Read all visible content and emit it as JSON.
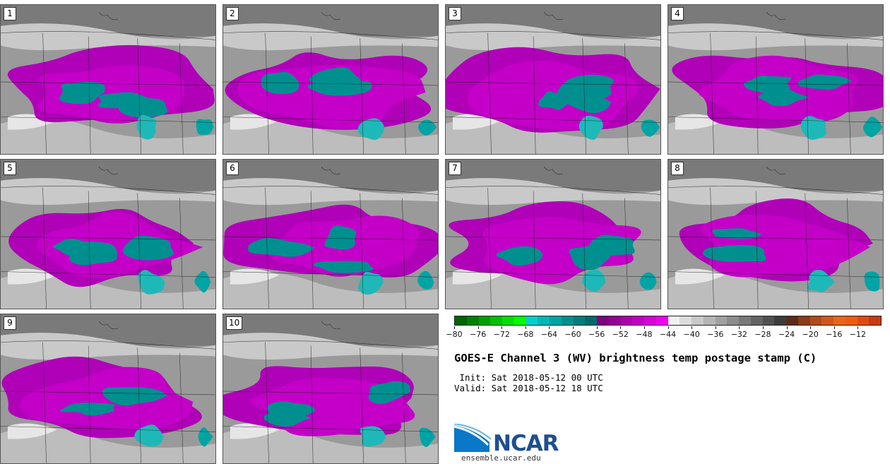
{
  "panels": [
    {
      "label": "1",
      "seed": 11,
      "blobs": 3
    },
    {
      "label": "2",
      "seed": 23,
      "blobs": 3
    },
    {
      "label": "3",
      "seed": 37,
      "blobs": 3
    },
    {
      "label": "4",
      "seed": 41,
      "blobs": 3
    },
    {
      "label": "5",
      "seed": 53,
      "blobs": 3
    },
    {
      "label": "6",
      "seed": 67,
      "blobs": 3
    },
    {
      "label": "7",
      "seed": 71,
      "blobs": 3
    },
    {
      "label": "8",
      "seed": 83,
      "blobs": 3
    },
    {
      "label": "9",
      "seed": 97,
      "blobs": 3
    },
    {
      "label": "10",
      "seed": 101,
      "blobs": 3
    }
  ],
  "colorbar": {
    "colors": [
      "#006400",
      "#008000",
      "#00a000",
      "#00c000",
      "#00e000",
      "#00ff00",
      "#00cfcf",
      "#00b8b8",
      "#00a4a4",
      "#008f8f",
      "#007d7d",
      "#006a6a",
      "#800080",
      "#960096",
      "#ac00ac",
      "#c200c2",
      "#d800d8",
      "#ee00ee",
      "#f0f0f0",
      "#dcdcdc",
      "#c8c8c8",
      "#b4b4b4",
      "#a0a0a0",
      "#8c8c8c",
      "#787878",
      "#646464",
      "#505050",
      "#3c3c3c",
      "#5a2a1a",
      "#8b3a1a",
      "#b04a1a",
      "#d0561a",
      "#e8661a",
      "#f05a10",
      "#e04a10",
      "#c83a10"
    ],
    "ticks": [
      "−80",
      "−76",
      "−72",
      "−68",
      "−64",
      "−60",
      "−56",
      "−52",
      "−48",
      "−44",
      "−40",
      "−36",
      "−32",
      "−28",
      "−24",
      "−20",
      "−16",
      "−12"
    ]
  },
  "title": "GOES-E Channel 3 (WV) brightness temp postage stamp (C)",
  "init": " Init: Sat 2018-05-12 00 UTC",
  "valid": "Valid: Sat 2018-05-12 18 UTC",
  "logo": {
    "text": "NCAR",
    "url": "ensemble.ucar.edu",
    "color": "#1f4f8f"
  }
}
